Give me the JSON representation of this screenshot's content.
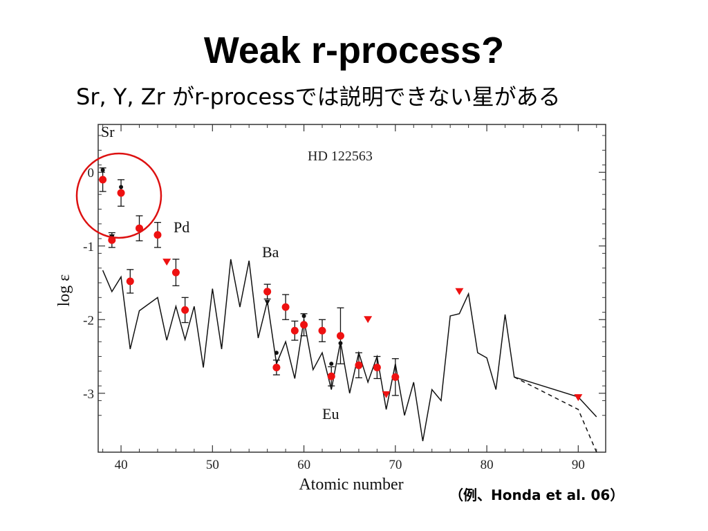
{
  "slide": {
    "title": "Weak r-process?",
    "subtitle": "Sr,  Y,  Zr  がr-processでは説明できない星がある",
    "citation": "（例、Honda et al. 06）"
  },
  "chart_data": {
    "type": "scatter",
    "star_label": "HD 122563",
    "xlabel": "Atomic number",
    "ylabel": "log ε",
    "xlim": [
      37.5,
      93
    ],
    "ylim": [
      -3.8,
      0.65
    ],
    "xticks": [
      40,
      50,
      60,
      70,
      80,
      90
    ],
    "yticks": [
      0,
      -1,
      -2,
      -3
    ],
    "annotations": [
      "Sr",
      "Pd",
      "Ba",
      "Eu"
    ],
    "colors": {
      "observed": "#ee1111",
      "model": "#111111",
      "highlight_circle": "#dd1111"
    },
    "observed_red": [
      {
        "z": 38,
        "y": -0.1,
        "err": 0.16
      },
      {
        "z": 39,
        "y": -0.92,
        "err": 0.1
      },
      {
        "z": 40,
        "y": -0.28,
        "err": 0.18
      },
      {
        "z": 41,
        "y": -1.48,
        "err": 0.16
      },
      {
        "z": 42,
        "y": -0.76,
        "err": 0.17
      },
      {
        "z": 44,
        "y": -0.85,
        "err": 0.17
      },
      {
        "z": 46,
        "y": -1.36,
        "err": 0.18
      },
      {
        "z": 47,
        "y": -1.87,
        "err": 0.17
      },
      {
        "z": 56,
        "y": -1.62,
        "err": 0.1
      },
      {
        "z": 57,
        "y": -2.65,
        "err": 0.1
      },
      {
        "z": 58,
        "y": -1.83,
        "err": 0.17
      },
      {
        "z": 59,
        "y": -2.15,
        "err": 0.13
      },
      {
        "z": 60,
        "y": -2.07,
        "err": 0.15
      },
      {
        "z": 62,
        "y": -2.15,
        "err": 0.15
      },
      {
        "z": 63,
        "y": -2.77,
        "err": 0.13
      },
      {
        "z": 64,
        "y": -2.22,
        "err": 0.38
      },
      {
        "z": 66,
        "y": -2.62,
        "err": 0.17
      },
      {
        "z": 68,
        "y": -2.65,
        "err": 0.15
      },
      {
        "z": 70,
        "y": -2.78,
        "err": 0.25
      }
    ],
    "observed_black": [
      {
        "z": 38,
        "y": 0.03
      },
      {
        "z": 39,
        "y": -0.87
      },
      {
        "z": 40,
        "y": -0.2
      },
      {
        "z": 57,
        "y": -2.45
      },
      {
        "z": 60,
        "y": -1.95
      },
      {
        "z": 63,
        "y": -2.6
      },
      {
        "z": 64,
        "y": -2.32
      }
    ],
    "upper_limits_red": [
      {
        "z": 45,
        "y": -1.22
      },
      {
        "z": 67,
        "y": -2.0
      },
      {
        "z": 69,
        "y": -3.02
      },
      {
        "z": 77,
        "y": -1.62
      },
      {
        "z": 90,
        "y": -3.06
      }
    ],
    "upper_limits_black": [
      {
        "z": 39,
        "y": -0.88
      },
      {
        "z": 56,
        "y": -1.77
      }
    ],
    "model_solid": [
      [
        38,
        -1.33
      ],
      [
        39,
        -1.62
      ],
      [
        40,
        -1.42
      ],
      [
        41,
        -2.4
      ],
      [
        42,
        -1.88
      ],
      [
        44,
        -1.7
      ],
      [
        45,
        -2.28
      ],
      [
        46,
        -1.82
      ],
      [
        47,
        -2.27
      ],
      [
        48,
        -1.82
      ],
      [
        49,
        -2.65
      ],
      [
        50,
        -1.58
      ],
      [
        51,
        -2.4
      ],
      [
        52,
        -1.18
      ],
      [
        53,
        -1.83
      ],
      [
        54,
        -1.2
      ],
      [
        55,
        -2.25
      ],
      [
        56,
        -1.75
      ],
      [
        57,
        -2.6
      ],
      [
        58,
        -2.3
      ],
      [
        59,
        -2.8
      ],
      [
        60,
        -2.0
      ],
      [
        61,
        -2.68
      ],
      [
        62,
        -2.45
      ],
      [
        63,
        -2.95
      ],
      [
        64,
        -2.3
      ],
      [
        65,
        -3.0
      ],
      [
        66,
        -2.45
      ],
      [
        67,
        -2.85
      ],
      [
        68,
        -2.5
      ],
      [
        69,
        -3.22
      ],
      [
        70,
        -2.6
      ],
      [
        71,
        -3.3
      ],
      [
        72,
        -2.85
      ],
      [
        73,
        -3.65
      ],
      [
        74,
        -2.95
      ],
      [
        75,
        -3.1
      ],
      [
        76,
        -1.95
      ],
      [
        77,
        -1.92
      ],
      [
        78,
        -1.65
      ],
      [
        79,
        -2.45
      ],
      [
        80,
        -2.52
      ],
      [
        81,
        -2.95
      ],
      [
        82,
        -1.93
      ],
      [
        83,
        -2.78
      ],
      [
        90,
        -3.05
      ],
      [
        92,
        -3.32
      ]
    ],
    "model_dashed": [
      [
        83,
        -2.78
      ],
      [
        90,
        -3.22
      ],
      [
        92,
        -3.8
      ]
    ]
  }
}
